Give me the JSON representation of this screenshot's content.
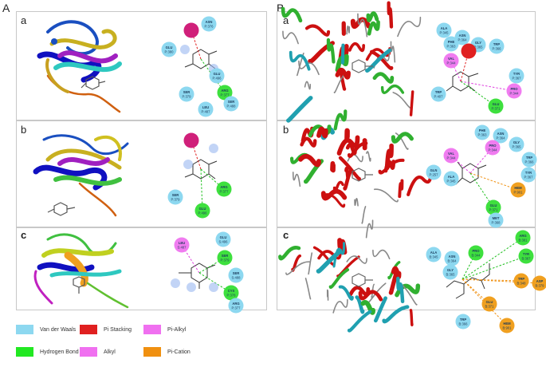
{
  "panel_labels": {
    "A": "A",
    "B": "B"
  },
  "sub_labels": [
    "a",
    "b",
    "c"
  ],
  "colors": {
    "vdw": "#8dd8f0",
    "hbond": "#3ee03e",
    "pistack": "#e82020",
    "alkyl": "#f07cf0",
    "picat": "#f0a020",
    "pisigma": "#c02070"
  },
  "legend": [
    {
      "label": "Van der Waals",
      "color": "#8dd8f0"
    },
    {
      "label": "Pi Stacking",
      "color": "#e02020"
    },
    {
      "label": "Pi-Alkyl",
      "color": "#f070f0"
    },
    {
      "label": "Hydrogen Bond",
      "color": "#22e822"
    },
    {
      "label": "Alkyl",
      "color": "#f070f0"
    },
    {
      "label": "Pi-Cation",
      "color": "#f09010"
    }
  ],
  "A": {
    "a": {
      "residues": [
        {
          "label": "ASN P:376",
          "type": "vdw"
        },
        {
          "label": "GLU P:380",
          "type": "vdw"
        },
        {
          "label": "ARG P:377",
          "type": "hbond"
        },
        {
          "label": "SER P:379",
          "type": "vdw"
        },
        {
          "label": "GLU P:496",
          "type": "vdw"
        },
        {
          "label": "LEU P:487",
          "type": "vdw"
        },
        {
          "label": "SER P:488",
          "type": "vdw"
        }
      ]
    },
    "b": {
      "residues": [
        {
          "label": "ARG P:377",
          "type": "hbond"
        },
        {
          "label": "SER P:379",
          "type": "vdw"
        },
        {
          "label": "GLU P:496",
          "type": "hbond"
        }
      ]
    },
    "c": {
      "residues": [
        {
          "label": "LEU S:487",
          "type": "alkyl"
        },
        {
          "label": "GLU S:496",
          "type": "vdw"
        },
        {
          "label": "SER P:379",
          "type": "hbond"
        },
        {
          "label": "SER S:488",
          "type": "vdw"
        },
        {
          "label": "CYS P:378",
          "type": "hbond"
        },
        {
          "label": "ARG P:377",
          "type": "vdw"
        }
      ]
    }
  },
  "B": {
    "a": {
      "residues": [
        {
          "label": "ALA P:345",
          "type": "vdw"
        },
        {
          "label": "ASN P:364",
          "type": "vdw"
        },
        {
          "label": "PHE P:363",
          "type": "vdw"
        },
        {
          "label": "GLY P:365",
          "type": "vdw"
        },
        {
          "label": "TRP P:366",
          "type": "vdw"
        },
        {
          "label": "VAL P:344",
          "type": "alkyl"
        },
        {
          "label": "TYR P:367",
          "type": "vdw"
        },
        {
          "label": "PRO P:344",
          "type": "alkyl"
        },
        {
          "label": "TRP P:407",
          "type": "vdw"
        },
        {
          "label": "GLU P:371",
          "type": "hbond"
        }
      ]
    },
    "b": {
      "residues": [
        {
          "label": "PHE P:363",
          "type": "vdw"
        },
        {
          "label": "ASN P:364",
          "type": "vdw"
        },
        {
          "label": "GLY P:365",
          "type": "vdw"
        },
        {
          "label": "PRO P:344",
          "type": "alkyl"
        },
        {
          "label": "TRP P:366",
          "type": "vdw"
        },
        {
          "label": "VAL P:344",
          "type": "alkyl"
        },
        {
          "label": "TYR P:367",
          "type": "vdw"
        },
        {
          "label": "GLN P:257",
          "type": "vdw"
        },
        {
          "label": "ALA P:345",
          "type": "vdw"
        },
        {
          "label": "HEM P:901",
          "type": "picat"
        },
        {
          "label": "GLU P:371",
          "type": "hbond"
        },
        {
          "label": "MET P:368",
          "type": "vdw"
        }
      ]
    },
    "c": {
      "residues": [
        {
          "label": "ARG B:381",
          "type": "hbond"
        },
        {
          "label": "ALA B:345",
          "type": "vdw"
        },
        {
          "label": "ASN B:364",
          "type": "vdw"
        },
        {
          "label": "PRO B:344",
          "type": "hbond"
        },
        {
          "label": "GLY B:365",
          "type": "vdw"
        },
        {
          "label": "TYR B:367",
          "type": "hbond"
        },
        {
          "label": "TRP B:348",
          "type": "picat"
        },
        {
          "label": "ASP B:379",
          "type": "picat"
        },
        {
          "label": "GLU B:371",
          "type": "picat"
        },
        {
          "label": "TRP B:366",
          "type": "vdw"
        },
        {
          "label": "HEM B:901",
          "type": "picat"
        }
      ]
    }
  }
}
